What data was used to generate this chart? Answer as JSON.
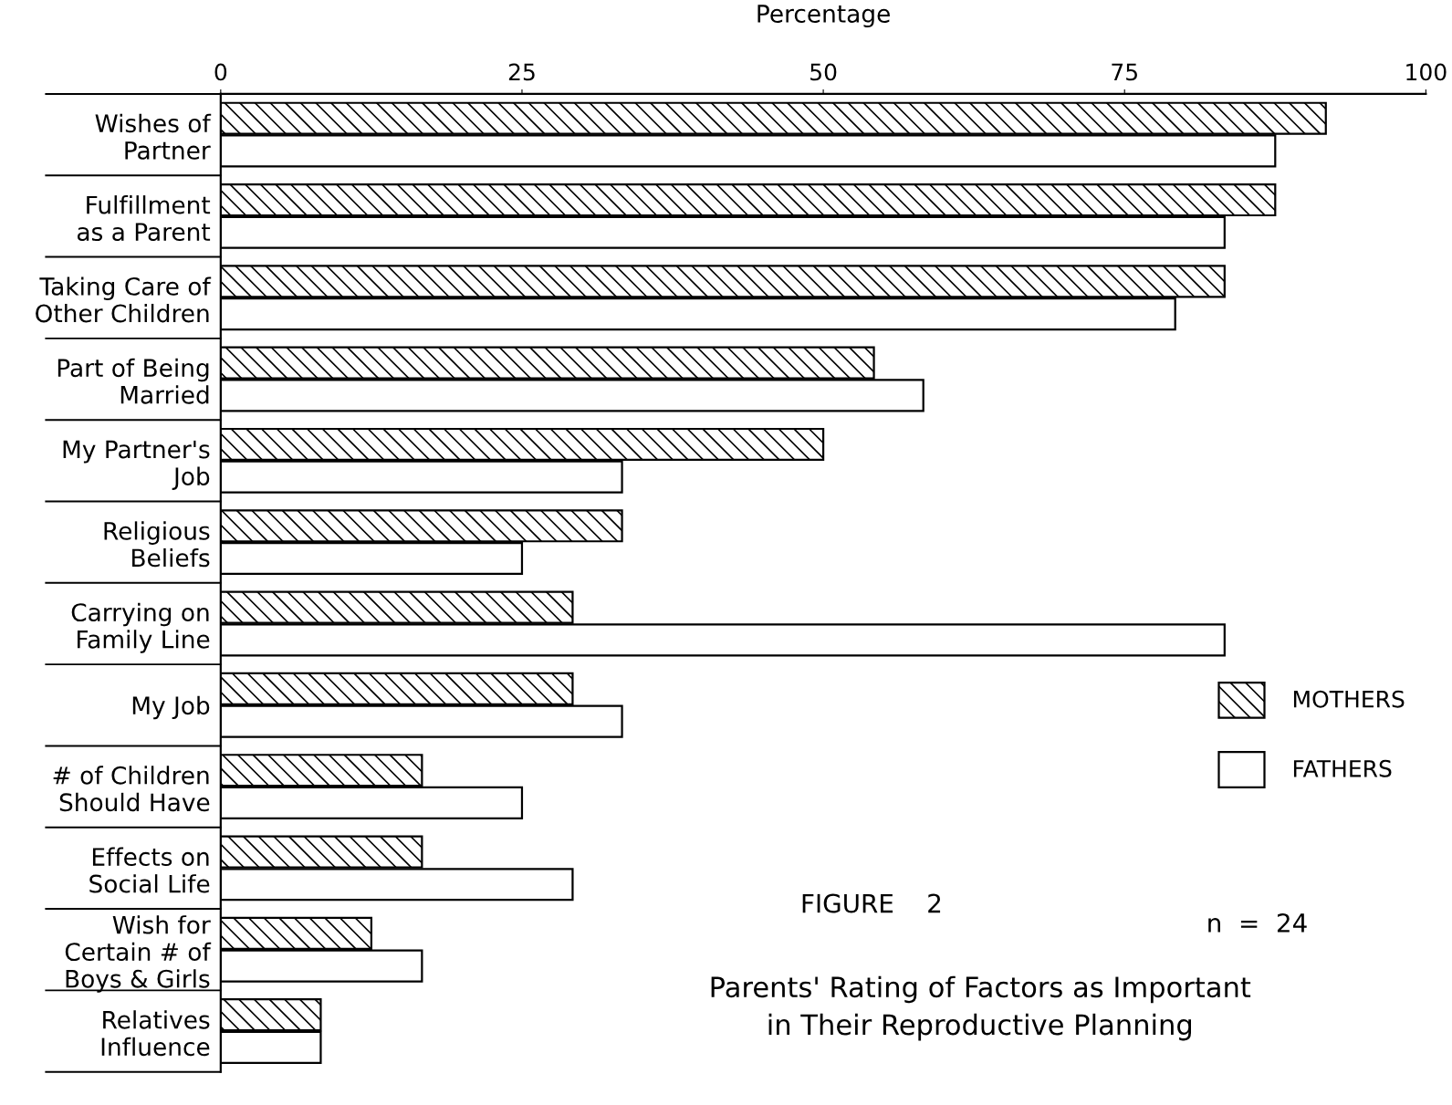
{
  "chart_data": {
    "type": "bar",
    "orientation": "horizontal",
    "title": "Parents' Rating of Factors as Important\nin Their Reproductive Planning",
    "xlabel": "Percentage",
    "categories": [
      "Wishes of\nPartner",
      "Fulfillment\nas a Parent",
      "Taking Care of\nOther Children",
      "Part of Being\nMarried",
      "My Partner's\nJob",
      "Religious\nBeliefs",
      "Carrying on\nFamily Line",
      "My Job",
      "# of Children\nShould Have",
      "Effects on\nSocial Life",
      "Wish for\nCertain # of\nBoys & Girls",
      "Relatives\nInfluence"
    ],
    "series": [
      {
        "name": "MOTHERS",
        "color": "#000000",
        "values": [
          91.7,
          87.5,
          83.3,
          54.2,
          50.0,
          33.3,
          29.2,
          29.2,
          16.7,
          16.7,
          12.5,
          8.3
        ]
      },
      {
        "name": "FATHERS",
        "color": "#ffffff",
        "values": [
          87.5,
          83.3,
          79.2,
          58.3,
          33.3,
          25.0,
          83.3,
          33.3,
          25.0,
          29.2,
          16.7,
          8.3
        ]
      }
    ],
    "xlim": [
      0,
      100
    ],
    "xticks": [
      0,
      25,
      50,
      75,
      100
    ],
    "grid": false,
    "legend": "bottom right",
    "annotations": [
      "FIGURE    2",
      "n  =  24"
    ]
  }
}
